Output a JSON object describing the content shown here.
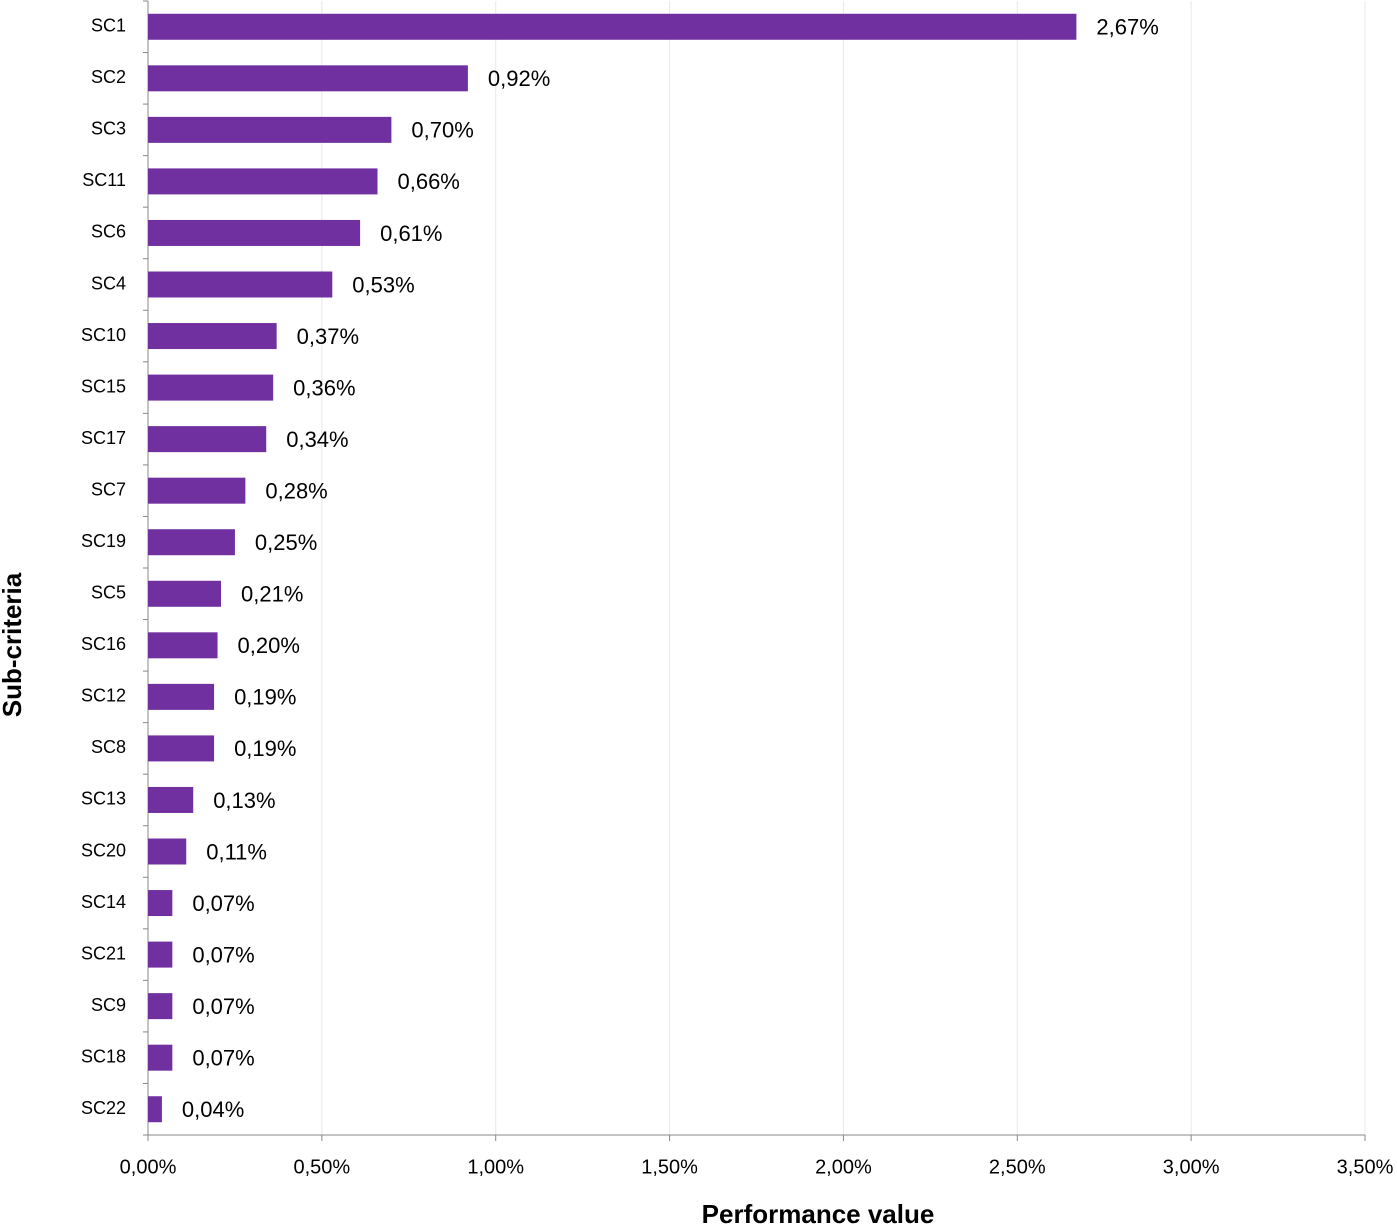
{
  "chart_data": {
    "type": "barh",
    "x_label": "Performance value",
    "y_label": "Sub-criteria",
    "categories": [
      "SC1",
      "SC2",
      "SC3",
      "SC11",
      "SC6",
      "SC4",
      "SC10",
      "SC15",
      "SC17",
      "SC7",
      "SC19",
      "SC5",
      "SC16",
      "SC12",
      "SC8",
      "SC13",
      "SC20",
      "SC14",
      "SC21",
      "SC9",
      "SC18",
      "SC22"
    ],
    "values": [
      2.67,
      0.92,
      0.7,
      0.66,
      0.61,
      0.53,
      0.37,
      0.36,
      0.34,
      0.28,
      0.25,
      0.21,
      0.2,
      0.19,
      0.19,
      0.13,
      0.11,
      0.07,
      0.07,
      0.07,
      0.07,
      0.04
    ],
    "value_labels": [
      "2,67%",
      "0,92%",
      "0,70%",
      "0,66%",
      "0,61%",
      "0,53%",
      "0,37%",
      "0,36%",
      "0,34%",
      "0,28%",
      "0,25%",
      "0,21%",
      "0,20%",
      "0,19%",
      "0,19%",
      "0,13%",
      "0,11%",
      "0,07%",
      "0,07%",
      "0,07%",
      "0,07%",
      "0,04%"
    ],
    "color": "#7030a0",
    "xlim": [
      0,
      3.5
    ],
    "xticks": [
      {
        "value": 0,
        "label": "0,00%"
      },
      {
        "value": 0.5,
        "label": "0,50%"
      },
      {
        "value": 1,
        "label": "1,00%"
      },
      {
        "value": 1.5,
        "label": "1,50%"
      },
      {
        "value": 2,
        "label": "2,00%"
      },
      {
        "value": 2.5,
        "label": "2,50%"
      },
      {
        "value": 3,
        "label": "3,00%"
      },
      {
        "value": 3.5,
        "label": "3,50%"
      }
    ],
    "grid": true
  }
}
